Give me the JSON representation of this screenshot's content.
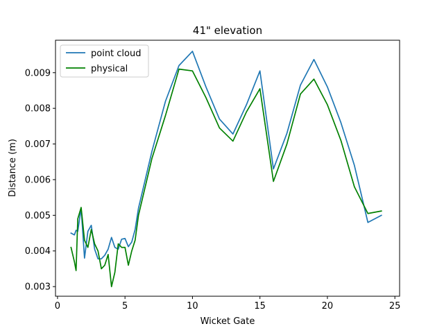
{
  "chart_data": {
    "type": "line",
    "title": "41\" elevation",
    "xlabel": "Wicket Gate",
    "ylabel": "Distance (m)",
    "xlim": [
      -0.15,
      25.35
    ],
    "ylim": [
      0.00273,
      0.00991
    ],
    "xticks": [
      0,
      5,
      10,
      15,
      20,
      25
    ],
    "yticks": [
      0.003,
      0.004,
      0.005,
      0.006,
      0.007,
      0.008,
      0.009
    ],
    "ytick_labels": [
      "0.003",
      "0.004",
      "0.005",
      "0.006",
      "0.007",
      "0.008",
      "0.009"
    ],
    "grid": false,
    "legend_position": "upper-left",
    "series": [
      {
        "name": "point cloud",
        "color": "#1f77b4",
        "x": [
          1,
          1.25,
          1.375,
          1.5,
          1.75,
          2,
          2.25,
          2.5,
          2.75,
          3,
          3.25,
          3.5,
          3.75,
          4,
          4.25,
          4.5,
          4.75,
          5,
          5.25,
          5.5,
          5.75,
          6,
          7,
          8,
          9,
          10,
          11,
          12,
          13,
          14,
          15,
          16,
          17,
          18,
          19,
          20,
          21,
          22,
          23,
          24
        ],
        "y": [
          0.0045,
          0.00445,
          0.00458,
          0.00455,
          0.0052,
          0.0038,
          0.00455,
          0.00472,
          0.00405,
          0.00378,
          0.00378,
          0.00388,
          0.00405,
          0.00438,
          0.0041,
          0.00405,
          0.00433,
          0.00435,
          0.00412,
          0.00425,
          0.0046,
          0.0052,
          0.0068,
          0.0082,
          0.0092,
          0.0096,
          0.0086,
          0.0077,
          0.00728,
          0.0081,
          0.00905,
          0.0063,
          0.0073,
          0.00865,
          0.00937,
          0.0086,
          0.0076,
          0.0064,
          0.0048,
          0.005
        ]
      },
      {
        "name": "physical",
        "color": "#008000",
        "x": [
          1,
          1.25,
          1.375,
          1.5,
          1.75,
          2,
          2.25,
          2.5,
          2.75,
          3,
          3.25,
          3.5,
          3.75,
          4,
          4.25,
          4.5,
          4.75,
          5,
          5.25,
          5.5,
          5.75,
          6,
          7,
          8,
          9,
          10,
          11,
          12,
          13,
          14,
          15,
          16,
          17,
          18,
          19,
          20,
          21,
          22,
          23,
          24
        ],
        "y": [
          0.0041,
          0.0037,
          0.00345,
          0.0049,
          0.00522,
          0.0043,
          0.0041,
          0.0046,
          0.0042,
          0.004,
          0.0035,
          0.0036,
          0.0039,
          0.003,
          0.0034,
          0.0042,
          0.0041,
          0.0041,
          0.0036,
          0.004,
          0.0043,
          0.005,
          0.0066,
          0.0078,
          0.0091,
          0.00905,
          0.0083,
          0.00745,
          0.00708,
          0.0079,
          0.00855,
          0.00595,
          0.007,
          0.0084,
          0.00882,
          0.0081,
          0.0071,
          0.0058,
          0.00505,
          0.00512
        ]
      }
    ]
  }
}
